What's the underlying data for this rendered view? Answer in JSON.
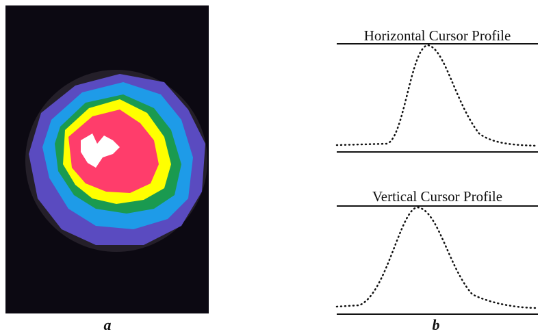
{
  "figure": {
    "panel_a": {
      "label": "a"
    },
    "panel_b": {
      "label": "b",
      "profiles": [
        {
          "title": "Horizontal Cursor Profile"
        },
        {
          "title": "Vertical Cursor Profile"
        }
      ]
    }
  }
}
